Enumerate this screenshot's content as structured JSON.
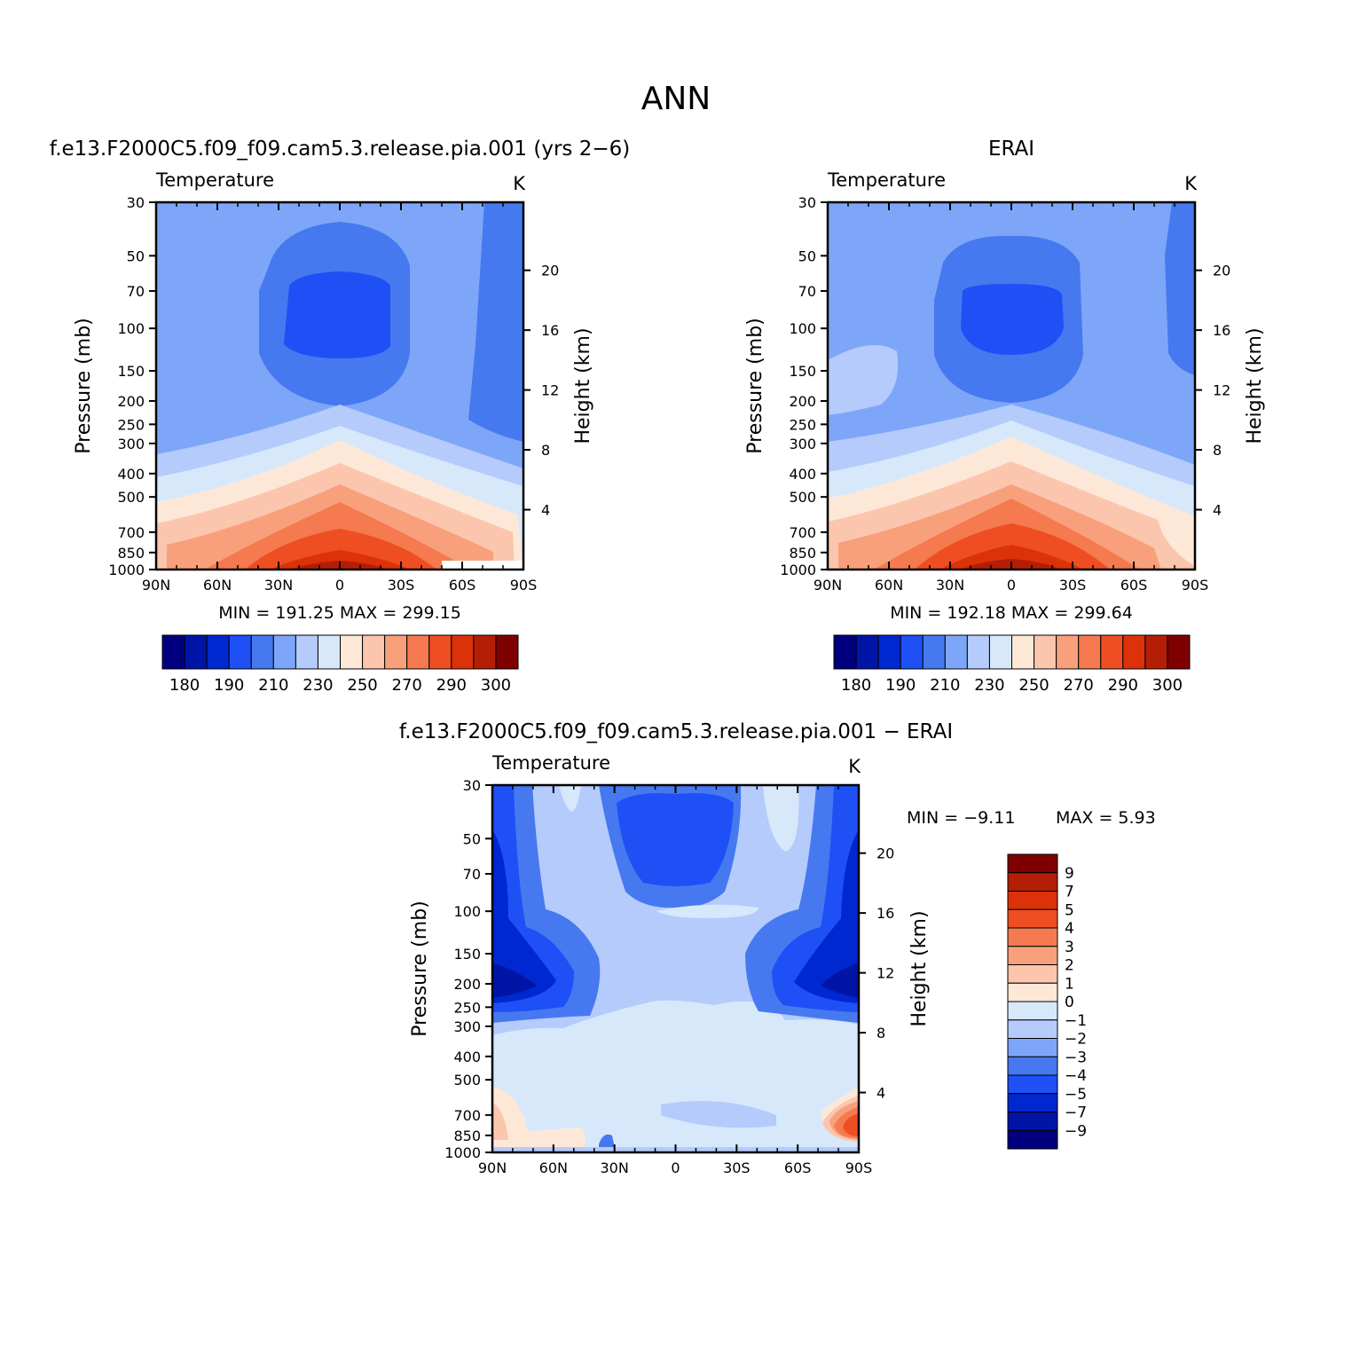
{
  "page_title": "ANN",
  "palette": {
    "abs": [
      "#00007f",
      "#0014a6",
      "#0028d0",
      "#1e50f5",
      "#4678f0",
      "#7ea6f8",
      "#b4cbfb",
      "#d7e8fb",
      "#fde8d8",
      "#fbc6ad",
      "#f8a07c",
      "#f57a4f",
      "#ef4e22",
      "#dc320a",
      "#b41e06",
      "#7f0000"
    ],
    "diff": [
      "#7f0000",
      "#b41e06",
      "#dc320a",
      "#ef4e22",
      "#f57a4f",
      "#f8a07c",
      "#fbc6ad",
      "#fde8d8",
      "#d7e8fb",
      "#b4cbfb",
      "#7ea6f8",
      "#4678f0",
      "#1e50f5",
      "#0028d0",
      "#0014a6",
      "#00007f"
    ]
  },
  "panels": [
    {
      "title": "f.e13.F2000C5.f09_f09.cam5.3.release.pia.001 (yrs 2−6)",
      "left_label": "Temperature",
      "units": "K",
      "ylabel": "Pressure (mb)",
      "y2label": "Height (km)",
      "stats": "MIN =  191.25   MAX =  299.15",
      "colorbar_labels": [
        "180",
        "190",
        "210",
        "230",
        "250",
        "270",
        "290",
        "300"
      ]
    },
    {
      "title": "ERAI",
      "left_label": "Temperature",
      "units": "K",
      "ylabel": "Pressure (mb)",
      "y2label": "Height (km)",
      "stats": "MIN =  192.18   MAX =  299.64",
      "colorbar_labels": [
        "180",
        "190",
        "210",
        "230",
        "250",
        "270",
        "290",
        "300"
      ]
    },
    {
      "title": "f.e13.F2000C5.f09_f09.cam5.3.release.pia.001 − ERAI",
      "left_label": "Temperature",
      "units": "K",
      "ylabel": "Pressure (mb)",
      "y2label": "Height (km)",
      "stats_min": "MIN =   −9.11",
      "stats_max": "MAX =    5.93",
      "colorbar_labels": [
        "9",
        "7",
        "5",
        "4",
        "3",
        "2",
        "1",
        "0",
        "−1",
        "−2",
        "−3",
        "−4",
        "−5",
        "−7",
        "−9"
      ]
    }
  ],
  "chart_data": [
    {
      "type": "heatmap",
      "title": "f.e13.F2000C5.f09_f09.cam5.3.release.pia.001 (yrs 2−6)",
      "variable": "Temperature",
      "units": "K",
      "xlabel": "",
      "ylabel": "Pressure (mb)",
      "y2label": "Height (km)",
      "x_tick_labels": [
        "90N",
        "60N",
        "30N",
        "0",
        "30S",
        "60S",
        "90S"
      ],
      "x_tick_values": [
        90,
        60,
        30,
        0,
        -30,
        -60,
        -90
      ],
      "y_tick_labels": [
        "30",
        "50",
        "70",
        "100",
        "150",
        "200",
        "250",
        "300",
        "400",
        "500",
        "700",
        "850",
        "1000"
      ],
      "y_tick_values": [
        30,
        50,
        70,
        100,
        150,
        200,
        250,
        300,
        400,
        500,
        700,
        850,
        1000
      ],
      "y2_tick_labels": [
        "20",
        "16",
        "12",
        "8",
        "4"
      ],
      "y2_tick_values": [
        20,
        16,
        12,
        8,
        4
      ],
      "ylim": [
        1000,
        30
      ],
      "levels": [
        180,
        185,
        190,
        200,
        210,
        220,
        230,
        240,
        250,
        260,
        270,
        280,
        290,
        295,
        300
      ],
      "min": 191.25,
      "max": 299.15
    },
    {
      "type": "heatmap",
      "title": "ERAI",
      "variable": "Temperature",
      "units": "K",
      "xlabel": "",
      "ylabel": "Pressure (mb)",
      "y2label": "Height (km)",
      "x_tick_labels": [
        "90N",
        "60N",
        "30N",
        "0",
        "30S",
        "60S",
        "90S"
      ],
      "x_tick_values": [
        90,
        60,
        30,
        0,
        -30,
        -60,
        -90
      ],
      "y_tick_labels": [
        "30",
        "50",
        "70",
        "100",
        "150",
        "200",
        "250",
        "300",
        "400",
        "500",
        "700",
        "850",
        "1000"
      ],
      "y_tick_values": [
        30,
        50,
        70,
        100,
        150,
        200,
        250,
        300,
        400,
        500,
        700,
        850,
        1000
      ],
      "y2_tick_labels": [
        "20",
        "16",
        "12",
        "8",
        "4"
      ],
      "y2_tick_values": [
        20,
        16,
        12,
        8,
        4
      ],
      "ylim": [
        1000,
        30
      ],
      "levels": [
        180,
        185,
        190,
        200,
        210,
        220,
        230,
        240,
        250,
        260,
        270,
        280,
        290,
        295,
        300
      ],
      "min": 192.18,
      "max": 299.64
    },
    {
      "type": "heatmap",
      "title": "f.e13.F2000C5.f09_f09.cam5.3.release.pia.001 − ERAI",
      "variable": "Temperature",
      "units": "K",
      "xlabel": "",
      "ylabel": "Pressure (mb)",
      "y2label": "Height (km)",
      "x_tick_labels": [
        "90N",
        "60N",
        "30N",
        "0",
        "30S",
        "60S",
        "90S"
      ],
      "x_tick_values": [
        90,
        60,
        30,
        0,
        -30,
        -60,
        -90
      ],
      "y_tick_labels": [
        "30",
        "50",
        "70",
        "100",
        "150",
        "200",
        "250",
        "300",
        "400",
        "500",
        "700",
        "850",
        "1000"
      ],
      "y_tick_values": [
        30,
        50,
        70,
        100,
        150,
        200,
        250,
        300,
        400,
        500,
        700,
        850,
        1000
      ],
      "y2_tick_labels": [
        "20",
        "16",
        "12",
        "8",
        "4"
      ],
      "y2_tick_values": [
        20,
        16,
        12,
        8,
        4
      ],
      "ylim": [
        1000,
        30
      ],
      "levels": [
        9,
        7,
        5,
        4,
        3,
        2,
        1,
        0,
        -1,
        -2,
        -3,
        -4,
        -5,
        -7,
        -9
      ],
      "min": -9.11,
      "max": 5.93
    }
  ]
}
